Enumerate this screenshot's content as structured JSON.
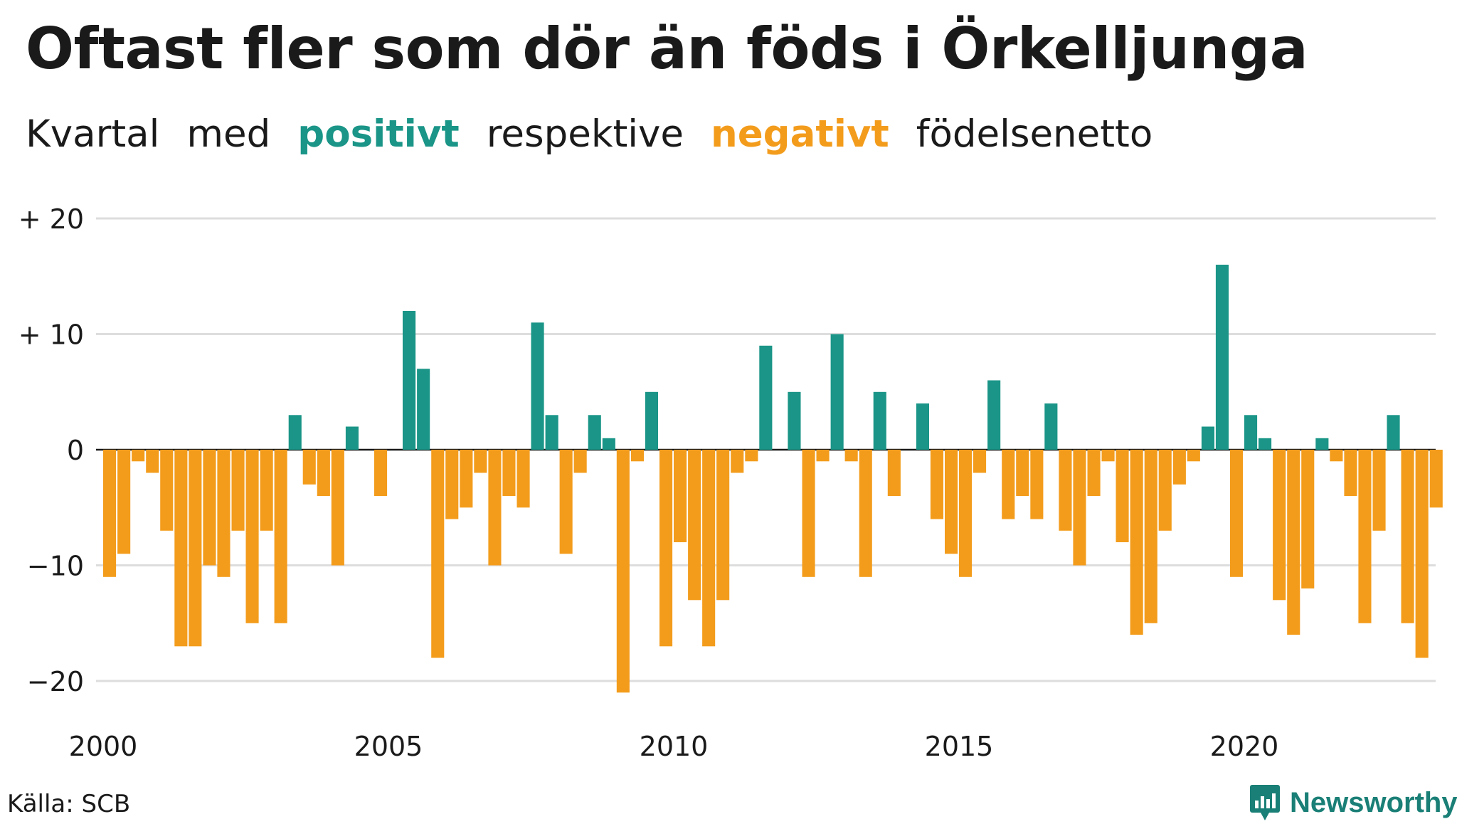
{
  "title": "Oftast fler som dör än föds i Örkelljunga",
  "subtitle": {
    "w1": "Kvartal",
    "w2": "med",
    "positive": "positivt",
    "w3": "respektive",
    "negative": "negativt",
    "w4": "födelsenetto"
  },
  "source": "Källa: SCB",
  "brand": {
    "name": "Newsworthy",
    "icon": "newsworthy-logo-icon"
  },
  "colors": {
    "positive": "#1a9587",
    "negative": "#f39c1c",
    "grid": "#dddddd",
    "text": "#1a1a1a"
  },
  "chart_data": {
    "type": "bar",
    "x_start": "2000 Q1",
    "frequency": "quarterly",
    "values": [
      -11,
      -9,
      -1,
      -2,
      -7,
      -17,
      -17,
      -10,
      -11,
      -7,
      -15,
      -7,
      -15,
      3,
      -3,
      -4,
      -10,
      2,
      0,
      -4,
      0,
      12,
      7,
      -18,
      -6,
      -5,
      -2,
      -10,
      -4,
      -5,
      11,
      3,
      -9,
      -2,
      3,
      1,
      -21,
      -1,
      5,
      -17,
      -8,
      -13,
      -17,
      -13,
      -2,
      -1,
      9,
      0,
      5,
      -11,
      -1,
      10,
      -1,
      -11,
      5,
      -4,
      0,
      4,
      -6,
      -9,
      -11,
      -2,
      6,
      -6,
      -4,
      -6,
      4,
      -7,
      -10,
      -4,
      -1,
      -8,
      -16,
      -15,
      -7,
      -3,
      -1,
      2,
      16,
      -11,
      3,
      1,
      -13,
      -16,
      -12,
      1,
      -1,
      -4,
      -15,
      -7,
      3,
      -15,
      -18,
      -5
    ],
    "yticks": [
      20,
      10,
      0,
      -10,
      -20
    ],
    "ytick_labels": [
      "+ 20",
      "+ 10",
      "0",
      "−10",
      "−20"
    ],
    "xticks": [
      "2000",
      "2005",
      "2010",
      "2015",
      "2020"
    ],
    "ylim": [
      -21,
      20
    ],
    "grid": true
  }
}
